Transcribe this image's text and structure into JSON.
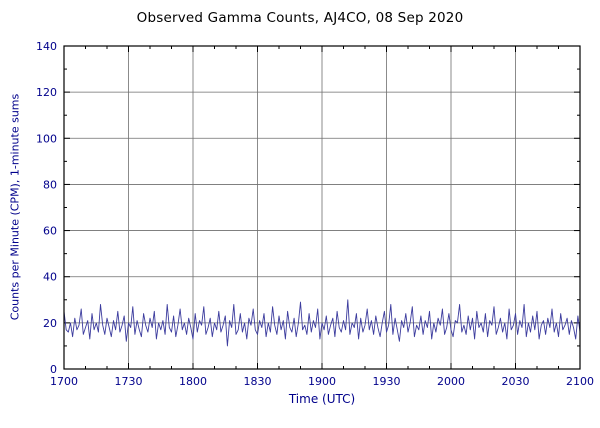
{
  "chart_data": {
    "type": "line",
    "title": "Observed Gamma Counts, AJ4CO, 08 Sep 2020",
    "xlabel": "Time (UTC)",
    "ylabel": "Counts per Minute (CPM), 1-minute sums",
    "x_tick_labels": [
      "1700",
      "1730",
      "1800",
      "1830",
      "1900",
      "1930",
      "2000",
      "2030",
      "2100"
    ],
    "x_tick_minutes": [
      0,
      30,
      60,
      90,
      120,
      150,
      180,
      210,
      240
    ],
    "x_minor_step_minutes": 10,
    "y_ticks": [
      0,
      20,
      40,
      60,
      80,
      100,
      120,
      140
    ],
    "y_minor_step": 10,
    "ylim": [
      0,
      140
    ],
    "xlim_minutes": [
      0,
      240
    ],
    "grid": true,
    "legend": "none",
    "colors": {
      "title": "#000000",
      "axis_text": "#00008b",
      "grid": "#6e6e6e",
      "frame": "#000000",
      "line": "#3c3c9e",
      "background": "#ffffff"
    },
    "series": [
      {
        "name": "gamma-counts-1min",
        "values": [
          25,
          17,
          16,
          20,
          14,
          22,
          17,
          19,
          26,
          15,
          18,
          21,
          13,
          24,
          17,
          20,
          16,
          28,
          19,
          15,
          22,
          18,
          14,
          21,
          17,
          25,
          16,
          19,
          23,
          12,
          20,
          18,
          27,
          15,
          21,
          17,
          14,
          24,
          19,
          16,
          22,
          18,
          25,
          13,
          20,
          17,
          21,
          15,
          28,
          18,
          16,
          23,
          14,
          19,
          26,
          17,
          20,
          15,
          22,
          18,
          13,
          24,
          16,
          21,
          19,
          27,
          15,
          18,
          22,
          14,
          20,
          17,
          25,
          16,
          19,
          23,
          10,
          21,
          18,
          28,
          15,
          17,
          24,
          16,
          20,
          13,
          22,
          19,
          26,
          17,
          15,
          21,
          18,
          24,
          14,
          20,
          16,
          27,
          19,
          15,
          23,
          17,
          21,
          13,
          25,
          18,
          16,
          22,
          14,
          20,
          29,
          17,
          19,
          15,
          24,
          16,
          21,
          18,
          26,
          13,
          20,
          17,
          23,
          15,
          19,
          22,
          14,
          25,
          18,
          16,
          21,
          17,
          30,
          15,
          20,
          18,
          24,
          13,
          22,
          16,
          19,
          26,
          17,
          21,
          15,
          23,
          18,
          14,
          20,
          25,
          16,
          19,
          28,
          15,
          22,
          17,
          12,
          21,
          18,
          24,
          16,
          20,
          27,
          14,
          19,
          17,
          23,
          15,
          21,
          18,
          25,
          13,
          20,
          16,
          22,
          19,
          26,
          15,
          18,
          24,
          17,
          14,
          21,
          20,
          28,
          16,
          19,
          15,
          23,
          17,
          22,
          13,
          25,
          18,
          20,
          16,
          24,
          14,
          21,
          19,
          27,
          15,
          18,
          22,
          16,
          20,
          13,
          26,
          17,
          19,
          24,
          15,
          21,
          18,
          28,
          14,
          20,
          16,
          23,
          17,
          25,
          13,
          19,
          21,
          15,
          22,
          18,
          26,
          16,
          20,
          14,
          24,
          17,
          19,
          22,
          15,
          21,
          18,
          13,
          23,
          16
        ]
      }
    ]
  }
}
